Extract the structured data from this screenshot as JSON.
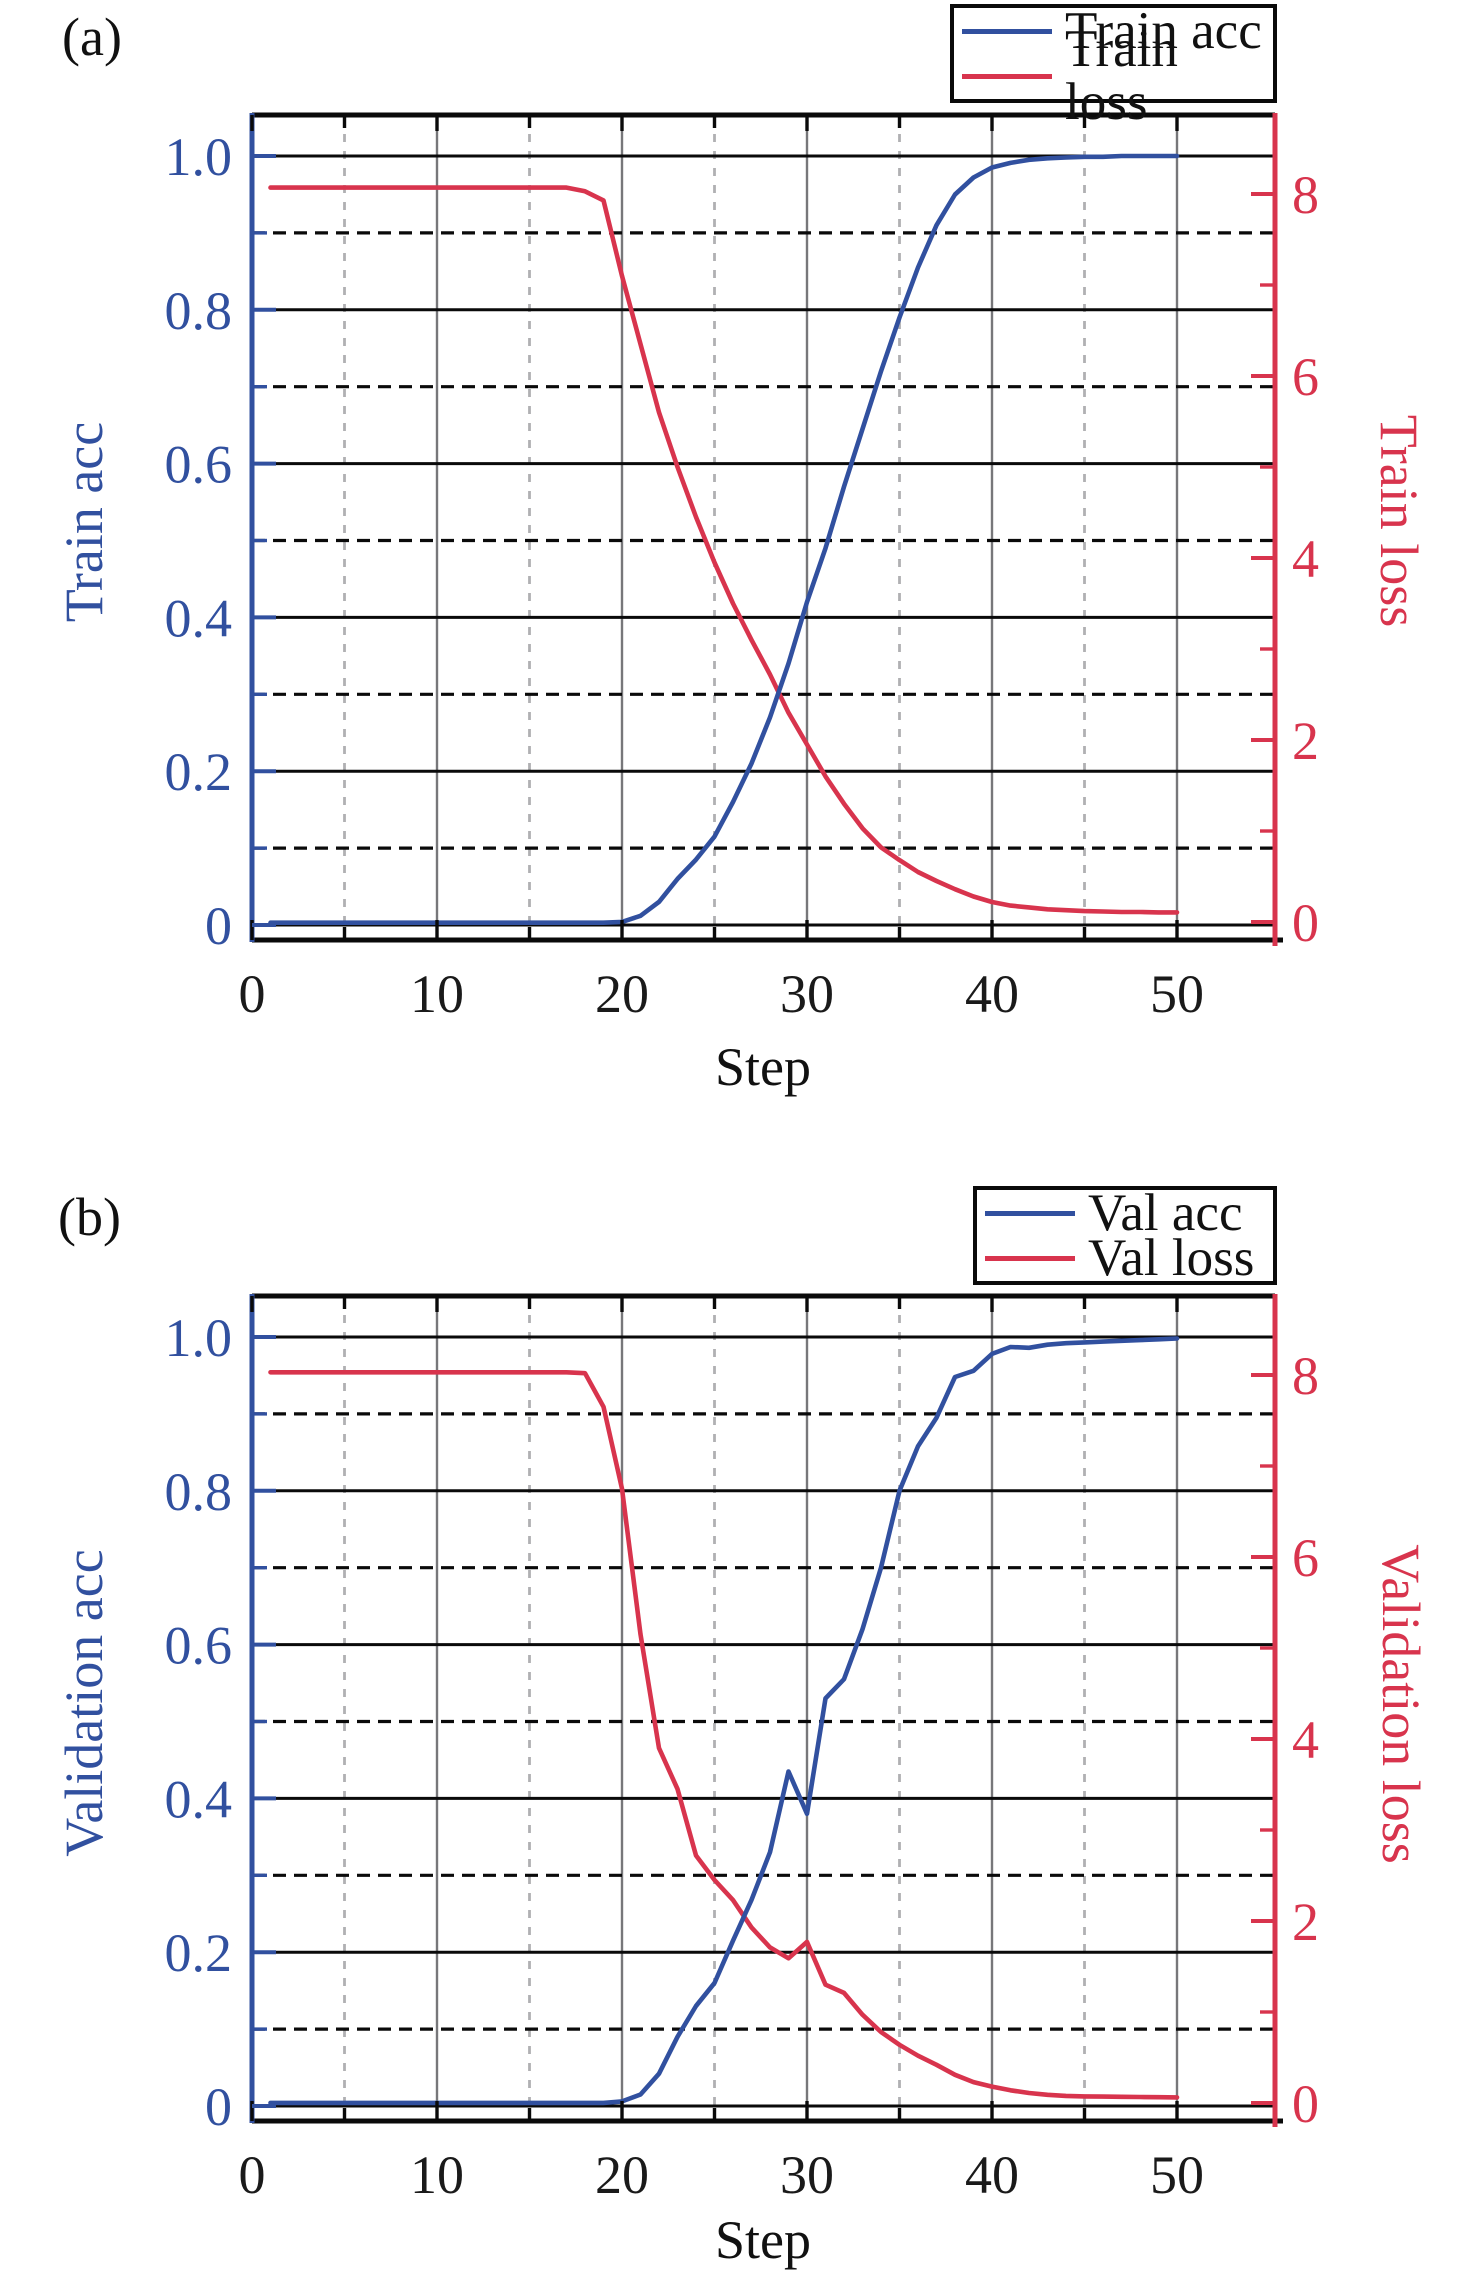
{
  "figure": {
    "background": "#ffffff"
  },
  "panel_labels": [
    "(a)",
    "(b)"
  ],
  "colors": {
    "acc_blue": "#31509f",
    "loss_red": "#d8344d",
    "grid_major_vertical": "#77777a",
    "grid_minor_vertical": "#b0b0b3",
    "grid_horizontal": "#0a0a0a",
    "frame_black": "#0a0a0a",
    "tick_text_black": "#1a1a1a"
  },
  "chart_data": [
    {
      "panel": "(a)",
      "type": "line",
      "xlabel": "Step",
      "left_ylabel": "Train acc",
      "right_ylabel": "Train loss",
      "xlim": [
        0,
        55
      ],
      "left_ylim": [
        -0.02,
        1.05
      ],
      "right_ylim": [
        -0.2,
        8.85
      ],
      "grid": "major solid + minor dashed, horizontal black / vertical gray",
      "legend_position": "above plot, top right",
      "xticks_major": [
        0,
        10,
        20,
        30,
        40,
        50
      ],
      "xticks_minor": [
        5,
        15,
        25,
        35,
        45
      ],
      "left_yticks_major": {
        "values": [
          0,
          0.2,
          0.4,
          0.6,
          0.8,
          1.0
        ],
        "labels": [
          "0",
          "0.2",
          "0.4",
          "0.6",
          "0.8",
          "1.0"
        ]
      },
      "left_yticks_minor": [
        0.1,
        0.3,
        0.5,
        0.7,
        0.9
      ],
      "right_yticks_major": {
        "values": [
          0,
          2,
          4,
          6,
          8
        ],
        "labels": [
          "0",
          "2",
          "4",
          "6",
          "8"
        ]
      },
      "right_yticks_minor": [
        1,
        3,
        5,
        7
      ],
      "x": [
        1,
        2,
        3,
        4,
        5,
        6,
        7,
        8,
        9,
        10,
        11,
        12,
        13,
        14,
        15,
        16,
        17,
        18,
        19,
        20,
        21,
        22,
        23,
        24,
        25,
        26,
        27,
        28,
        29,
        30,
        31,
        32,
        33,
        34,
        35,
        36,
        37,
        38,
        39,
        40,
        41,
        42,
        43,
        44,
        45,
        46,
        47,
        48,
        49,
        50
      ],
      "series": [
        {
          "name": "Train loss",
          "axis": "right",
          "color": "#d8344d",
          "values": [
            8.07,
            8.07,
            8.07,
            8.07,
            8.07,
            8.07,
            8.07,
            8.07,
            8.07,
            8.07,
            8.07,
            8.07,
            8.07,
            8.07,
            8.07,
            8.07,
            8.07,
            8.03,
            7.93,
            7.1,
            6.35,
            5.6,
            5.0,
            4.45,
            3.95,
            3.5,
            3.1,
            2.72,
            2.3,
            1.95,
            1.6,
            1.3,
            1.03,
            0.82,
            0.68,
            0.55,
            0.45,
            0.36,
            0.28,
            0.22,
            0.18,
            0.16,
            0.14,
            0.13,
            0.12,
            0.115,
            0.11,
            0.11,
            0.105,
            0.105
          ]
        },
        {
          "name": "Train acc",
          "axis": "left",
          "color": "#31509f",
          "values": [
            0.003,
            0.003,
            0.003,
            0.003,
            0.003,
            0.003,
            0.003,
            0.003,
            0.003,
            0.003,
            0.003,
            0.003,
            0.003,
            0.003,
            0.003,
            0.003,
            0.003,
            0.003,
            0.003,
            0.004,
            0.012,
            0.03,
            0.06,
            0.085,
            0.115,
            0.16,
            0.21,
            0.27,
            0.34,
            0.42,
            0.49,
            0.57,
            0.645,
            0.72,
            0.79,
            0.855,
            0.91,
            0.95,
            0.972,
            0.985,
            0.991,
            0.995,
            0.997,
            0.998,
            0.999,
            0.999,
            1.0,
            1.0,
            1.0,
            1.0
          ]
        }
      ],
      "legend_entries": [
        "Train acc",
        "Train loss"
      ]
    },
    {
      "panel": "(b)",
      "type": "line",
      "xlabel": "Step",
      "left_ylabel": "Validation acc",
      "right_ylabel": "Validation loss",
      "xlim": [
        0,
        55
      ],
      "left_ylim": [
        -0.02,
        1.05
      ],
      "right_ylim": [
        -0.2,
        8.85
      ],
      "grid": "major solid + minor dashed, horizontal black / vertical gray",
      "legend_position": "above plot, top right",
      "xticks_major": [
        0,
        10,
        20,
        30,
        40,
        50
      ],
      "xticks_minor": [
        5,
        15,
        25,
        35,
        45
      ],
      "left_yticks_major": {
        "values": [
          0,
          0.2,
          0.4,
          0.6,
          0.8,
          1.0
        ],
        "labels": [
          "0",
          "0.2",
          "0.4",
          "0.6",
          "0.8",
          "1.0"
        ]
      },
      "left_yticks_minor": [
        0.1,
        0.3,
        0.5,
        0.7,
        0.9
      ],
      "right_yticks_major": {
        "values": [
          0,
          2,
          4,
          6,
          8
        ],
        "labels": [
          "0",
          "2",
          "4",
          "6",
          "8"
        ]
      },
      "right_yticks_minor": [
        1,
        3,
        5,
        7
      ],
      "x": [
        1,
        2,
        3,
        4,
        5,
        6,
        7,
        8,
        9,
        10,
        11,
        12,
        13,
        14,
        15,
        16,
        17,
        18,
        19,
        20,
        21,
        22,
        23,
        24,
        25,
        26,
        27,
        28,
        29,
        30,
        31,
        32,
        33,
        34,
        35,
        36,
        37,
        38,
        39,
        40,
        41,
        42,
        43,
        44,
        45,
        46,
        47,
        48,
        49,
        50
      ],
      "series": [
        {
          "name": "Val loss",
          "axis": "right",
          "color": "#d8344d",
          "values": [
            8.03,
            8.03,
            8.03,
            8.03,
            8.03,
            8.03,
            8.03,
            8.03,
            8.03,
            8.03,
            8.03,
            8.03,
            8.03,
            8.03,
            8.03,
            8.03,
            8.03,
            8.02,
            7.65,
            6.75,
            5.15,
            3.9,
            3.45,
            2.72,
            2.45,
            2.23,
            1.93,
            1.71,
            1.59,
            1.77,
            1.3,
            1.21,
            0.97,
            0.78,
            0.64,
            0.52,
            0.42,
            0.31,
            0.23,
            0.18,
            0.14,
            0.11,
            0.09,
            0.078,
            0.072,
            0.07,
            0.068,
            0.066,
            0.064,
            0.062
          ]
        },
        {
          "name": "Val acc",
          "axis": "left",
          "color": "#31509f",
          "values": [
            0.004,
            0.004,
            0.004,
            0.004,
            0.004,
            0.004,
            0.004,
            0.004,
            0.004,
            0.004,
            0.004,
            0.004,
            0.004,
            0.004,
            0.004,
            0.004,
            0.004,
            0.004,
            0.004,
            0.006,
            0.015,
            0.042,
            0.09,
            0.13,
            0.16,
            0.215,
            0.268,
            0.33,
            0.435,
            0.38,
            0.53,
            0.555,
            0.62,
            0.7,
            0.8,
            0.858,
            0.895,
            0.948,
            0.956,
            0.978,
            0.987,
            0.986,
            0.99,
            0.992,
            0.993,
            0.994,
            0.995,
            0.996,
            0.997,
            0.998
          ]
        }
      ],
      "legend_entries": [
        "Val acc",
        "Val loss"
      ]
    }
  ]
}
